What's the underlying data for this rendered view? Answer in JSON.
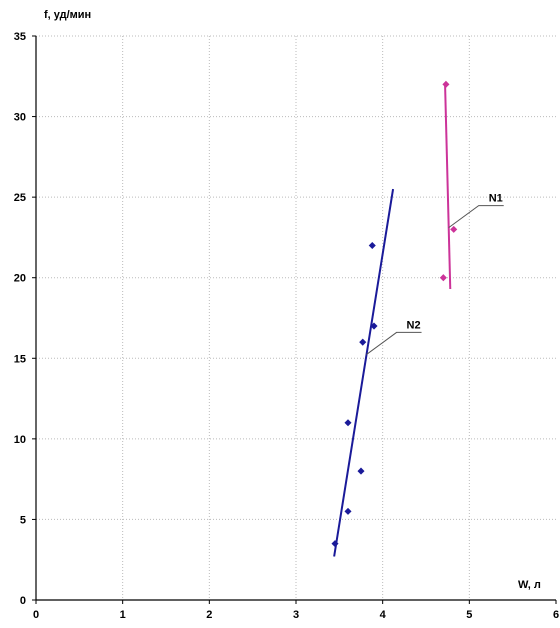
{
  "chart_data": {
    "type": "scatter",
    "xlabel": "W, л",
    "ylabel": "f, уд/мин",
    "xlim": [
      0,
      6
    ],
    "ylim": [
      0,
      35
    ],
    "xticks": [
      "0",
      "1",
      "2",
      "3",
      "4",
      "5",
      "6"
    ],
    "yticks": [
      "0",
      "5",
      "10",
      "15",
      "20",
      "25",
      "30",
      "35"
    ],
    "grid": true,
    "series": [
      {
        "name": "N1",
        "color": "#cc3399",
        "points": [
          {
            "x": 4.73,
            "y": 32
          },
          {
            "x": 4.82,
            "y": 23
          },
          {
            "x": 4.7,
            "y": 20
          }
        ],
        "fit_line": [
          {
            "x": 4.72,
            "y": 32
          },
          {
            "x": 4.78,
            "y": 19.3
          }
        ]
      },
      {
        "name": "N2",
        "color": "#1a1a99",
        "points": [
          {
            "x": 3.45,
            "y": 3.5
          },
          {
            "x": 3.6,
            "y": 5.5
          },
          {
            "x": 3.6,
            "y": 11
          },
          {
            "x": 3.75,
            "y": 8
          },
          {
            "x": 3.77,
            "y": 16
          },
          {
            "x": 3.9,
            "y": 17
          },
          {
            "x": 3.88,
            "y": 22
          }
        ],
        "fit_line": [
          {
            "x": 3.44,
            "y": 2.7
          },
          {
            "x": 4.12,
            "y": 25.5
          }
        ]
      }
    ],
    "annotations": [
      {
        "text": "N1",
        "series": "N1"
      },
      {
        "text": "N2",
        "series": "N2"
      }
    ]
  }
}
